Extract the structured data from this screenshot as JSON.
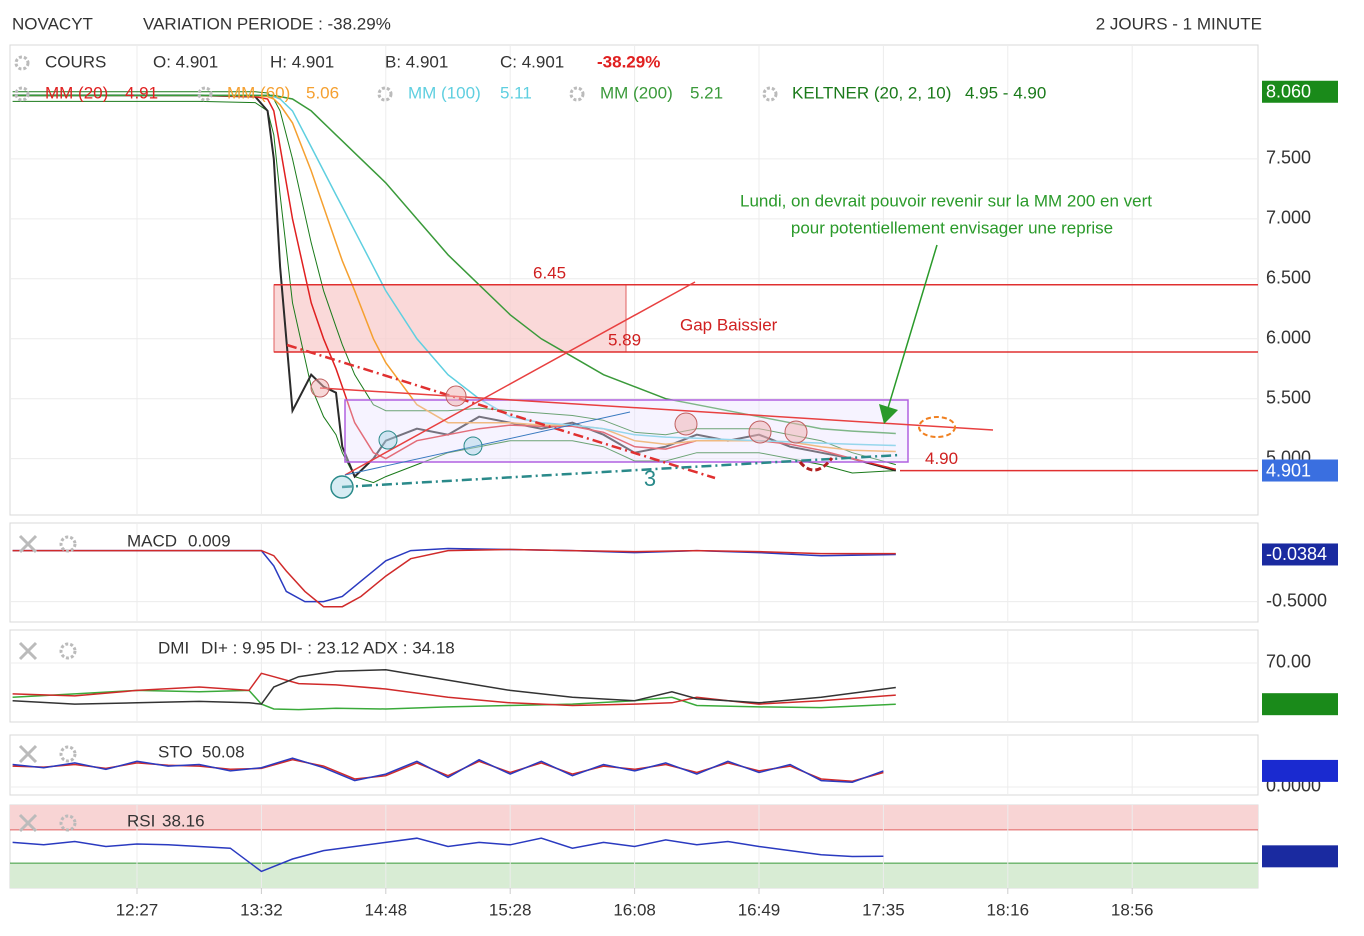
{
  "header": {
    "symbol": "NOVACYT",
    "variation": "VARIATION PERIODE : -38.29%",
    "period": "2 JOURS - 1 MINUTE"
  },
  "chart_data": [
    {
      "type": "line",
      "ohlc": [
        "O: 4.901",
        "H: 4.901",
        "B: 4.901",
        "C: 4.901"
      ],
      "change": "-38.29%",
      "ylim": [
        4.53,
        8.45
      ],
      "yticks": [
        {
          "value": 5,
          "label": "5.000"
        },
        {
          "value": 5.5,
          "label": "5.500"
        },
        {
          "value": 6,
          "label": "6.000"
        },
        {
          "value": 6.5,
          "label": "6.500"
        },
        {
          "value": 7,
          "label": "7.000"
        },
        {
          "value": 7.5,
          "label": "7.500"
        }
      ],
      "xticks": [
        {
          "value": 0,
          "label": "12:27"
        },
        {
          "value": 1,
          "label": "13:32"
        },
        {
          "value": 2,
          "label": "14:48"
        },
        {
          "value": 3,
          "label": "15:28"
        },
        {
          "value": 4,
          "label": "16:08"
        },
        {
          "value": 5,
          "label": "16:49"
        },
        {
          "value": 6,
          "label": "17:35"
        },
        {
          "value": 7,
          "label": "18:16"
        },
        {
          "value": 8,
          "label": "18:56"
        }
      ],
      "x": [
        -1,
        -0.5,
        0,
        0.5,
        0.95,
        1.05,
        1.1,
        1.15,
        1.25,
        1.4,
        1.5,
        1.6,
        1.65,
        1.75,
        1.9,
        2.0,
        2.25,
        2.5,
        2.75,
        3.0,
        3.25,
        3.5,
        3.75,
        4.0,
        4.25,
        4.5,
        4.75,
        5.0,
        5.25,
        5.5,
        5.75,
        6.1
      ],
      "keltner": {
        "name": "KELTNER (20, 2, 10)",
        "label": "4.95 - 4.90",
        "color": "#1a7a1a",
        "upper": [
          8.06,
          8.06,
          8.06,
          8.06,
          8.06,
          8.05,
          8.0,
          7.9,
          7.5,
          6.8,
          6.4,
          6.1,
          5.95,
          5.7,
          5.45,
          5.4,
          5.4,
          5.4,
          5.42,
          5.4,
          5.38,
          5.36,
          5.32,
          5.22,
          5.2,
          5.25,
          5.25,
          5.25,
          5.2,
          5.15,
          5.05,
          4.95
        ],
        "lower": [
          7.98,
          7.98,
          7.98,
          7.98,
          7.97,
          7.9,
          7.7,
          7.2,
          6.3,
          5.6,
          5.35,
          5.2,
          5.05,
          4.85,
          4.8,
          4.85,
          4.95,
          5.05,
          5.1,
          5.15,
          5.15,
          5.15,
          5.1,
          4.98,
          4.98,
          5.05,
          5.05,
          5.05,
          5.0,
          4.95,
          4.88,
          4.9
        ]
      },
      "series": [
        {
          "name": "COURS",
          "color": "#2b2b2b",
          "values": [
            8.03,
            8.03,
            8.03,
            8.03,
            8.02,
            7.9,
            7.5,
            6.6,
            5.4,
            5.7,
            5.6,
            5.55,
            5.1,
            4.85,
            5.0,
            5.15,
            5.25,
            5.2,
            5.35,
            5.3,
            5.25,
            5.3,
            5.2,
            5.05,
            5.1,
            5.2,
            5.15,
            5.2,
            5.1,
            5.05,
            5.0,
            4.901
          ]
        },
        {
          "name": "MM (20)",
          "last": 4.91,
          "color": "#e02020",
          "values": [
            8.03,
            8.03,
            8.03,
            8.03,
            8.02,
            8.0,
            7.9,
            7.6,
            7.0,
            6.3,
            6.0,
            5.75,
            5.6,
            5.3,
            5.05,
            5.0,
            5.15,
            5.2,
            5.25,
            5.28,
            5.27,
            5.27,
            5.22,
            5.1,
            5.08,
            5.15,
            5.15,
            5.15,
            5.12,
            5.07,
            5.0,
            4.91
          ]
        },
        {
          "name": "MM (60)",
          "last": 5.06,
          "color": "#f5a030",
          "values": [
            8.03,
            8.03,
            8.03,
            8.03,
            8.03,
            8.02,
            8.0,
            7.95,
            7.8,
            7.4,
            7.1,
            6.8,
            6.65,
            6.4,
            6.0,
            5.8,
            5.45,
            5.3,
            5.3,
            5.3,
            5.28,
            5.28,
            5.25,
            5.15,
            5.12,
            5.15,
            5.15,
            5.15,
            5.14,
            5.1,
            5.07,
            5.06
          ]
        },
        {
          "name": "MM (100)",
          "last": 5.11,
          "color": "#5fcfe0",
          "values": [
            8.03,
            8.03,
            8.03,
            8.03,
            8.03,
            8.03,
            8.02,
            8.0,
            7.9,
            7.6,
            7.4,
            7.2,
            7.1,
            6.9,
            6.6,
            6.4,
            6.0,
            5.7,
            5.5,
            5.35,
            5.3,
            5.28,
            5.25,
            5.2,
            5.18,
            5.17,
            5.16,
            5.15,
            5.14,
            5.13,
            5.12,
            5.11
          ]
        },
        {
          "name": "MM (200)",
          "last": 5.21,
          "color": "#3a9a3a",
          "values": [
            8.03,
            8.03,
            8.03,
            8.03,
            8.03,
            8.03,
            8.03,
            8.02,
            8.0,
            7.9,
            7.8,
            7.7,
            7.65,
            7.55,
            7.4,
            7.3,
            7.0,
            6.7,
            6.45,
            6.2,
            6.0,
            5.85,
            5.7,
            5.6,
            5.5,
            5.45,
            5.4,
            5.35,
            5.3,
            5.25,
            5.23,
            5.21
          ]
        }
      ],
      "hlines": [
        6.45,
        5.89,
        {
          "value": 4.9,
          "label": "4.90"
        }
      ],
      "notes": [
        "Gap Baissier",
        "Lundi, on devrait pouvoir revenir sur la MM 200 en vert",
        "pour potentiellement envisager une reprise",
        "3"
      ],
      "badges": [
        {
          "value": 8.06,
          "label": "8.060",
          "color": "#1a8a1a"
        },
        {
          "value": 4.901,
          "label": "4.901",
          "color": "#3a6fe0"
        }
      ]
    },
    {
      "type": "line",
      "title": "MACD",
      "reading": 0.009,
      "ylim": [
        -0.7,
        0.27
      ],
      "yticks": [
        {
          "value": -0.5,
          "label": "-0.5000"
        }
      ],
      "x": [
        -1,
        0,
        1.0,
        1.1,
        1.2,
        1.35,
        1.5,
        1.65,
        1.8,
        2.0,
        2.2,
        2.5,
        3.0,
        3.5,
        4.0,
        4.5,
        5.0,
        5.5,
        6.1
      ],
      "series": [
        {
          "color": "#2a3ac0",
          "values": [
            0,
            0,
            0,
            -0.15,
            -0.4,
            -0.5,
            -0.5,
            -0.45,
            -0.3,
            -0.1,
            0.0,
            0.02,
            0.01,
            0,
            -0.02,
            0,
            -0.02,
            -0.05,
            -0.0384
          ]
        },
        {
          "color": "#d02a2a",
          "values": [
            0,
            0,
            0,
            -0.05,
            -0.2,
            -0.4,
            -0.55,
            -0.55,
            -0.45,
            -0.25,
            -0.08,
            0.0,
            0.01,
            0.0,
            -0.01,
            0,
            -0.01,
            -0.03,
            -0.03
          ]
        }
      ],
      "badges": [
        {
          "value": -0.0384,
          "label": "-0.0384",
          "color": "#1a2aa0"
        }
      ]
    },
    {
      "type": "line",
      "title": "DMI",
      "reading": "DI+ : 9.95 DI- : 23.12 ADX : 34.18",
      "ylim": [
        -16,
        118
      ],
      "yticks": [
        {
          "value": 70,
          "label": "70.00"
        }
      ],
      "x": [
        -1,
        -0.5,
        0,
        0.5,
        0.9,
        1.0,
        1.1,
        1.3,
        1.6,
        2.0,
        2.5,
        3.0,
        3.5,
        4.0,
        4.3,
        4.5,
        5.0,
        5.5,
        6.1
      ],
      "series": [
        {
          "color": "#3aaa3a",
          "values": [
            20,
            25,
            30,
            28,
            30,
            10,
            3,
            2,
            4,
            3,
            6,
            8,
            10,
            15,
            20,
            8,
            6,
            5,
            9.95
          ]
        },
        {
          "color": "#d02a2a",
          "values": [
            25,
            22,
            30,
            35,
            30,
            55,
            50,
            40,
            38,
            32,
            20,
            12,
            8,
            10,
            12,
            20,
            10,
            15,
            23.12
          ]
        },
        {
          "color": "#333333",
          "values": [
            15,
            10,
            12,
            14,
            12,
            10,
            35,
            50,
            58,
            60,
            45,
            30,
            20,
            15,
            28,
            18,
            12,
            20,
            34.18
          ]
        }
      ],
      "badges": [
        {
          "value": 9.95,
          "color": "#1a8a1a"
        }
      ]
    },
    {
      "type": "line",
      "title": "STO",
      "reading": 50.08,
      "ylim": [
        -25,
        162
      ],
      "yticks": [
        {
          "value": 0,
          "label": "0.0000"
        }
      ],
      "x": [
        -1,
        -0.75,
        -0.5,
        -0.25,
        0,
        0.25,
        0.5,
        0.75,
        1,
        1.25,
        1.5,
        1.75,
        2,
        2.25,
        2.5,
        2.75,
        3,
        3.25,
        3.5,
        3.75,
        4,
        4.25,
        4.5,
        4.75,
        5,
        5.25,
        5.5,
        5.75,
        6
      ],
      "series": [
        {
          "color": "#d02a2a",
          "values": [
            65,
            62,
            70,
            58,
            75,
            68,
            65,
            55,
            58,
            85,
            65,
            25,
            35,
            75,
            35,
            80,
            45,
            75,
            40,
            65,
            55,
            70,
            45,
            75,
            50,
            65,
            25,
            18,
            45
          ]
        },
        {
          "color": "#2a3ac0",
          "values": [
            70,
            60,
            75,
            55,
            80,
            65,
            70,
            50,
            60,
            90,
            60,
            20,
            40,
            80,
            30,
            85,
            40,
            80,
            35,
            70,
            50,
            75,
            40,
            80,
            45,
            70,
            20,
            15,
            50.08
          ]
        }
      ],
      "badges": [
        {
          "value": 50.08,
          "color": "#1a2ad0"
        }
      ]
    },
    {
      "type": "line",
      "title": "RSI",
      "reading": 38.16,
      "ylim": [
        0,
        100
      ],
      "overbought": 70,
      "oversold": 30,
      "yticks": [],
      "x": [
        -1,
        -0.75,
        -0.5,
        -0.25,
        0,
        0.25,
        0.5,
        0.75,
        1,
        1.25,
        1.5,
        1.75,
        2,
        2.25,
        2.5,
        2.75,
        3,
        3.25,
        3.5,
        3.75,
        4,
        4.25,
        4.5,
        4.75,
        5,
        5.25,
        5.5,
        5.75,
        6
      ],
      "series": [
        {
          "color": "#2a3ac0",
          "values": [
            55,
            52,
            56,
            50,
            53,
            52,
            50,
            48,
            20,
            35,
            45,
            50,
            55,
            60,
            50,
            55,
            52,
            60,
            48,
            55,
            50,
            58,
            52,
            56,
            50,
            45,
            40,
            38,
            38.16
          ]
        }
      ],
      "badges": [
        {
          "value": 38.16,
          "color": "#1a2aa0"
        }
      ]
    }
  ]
}
